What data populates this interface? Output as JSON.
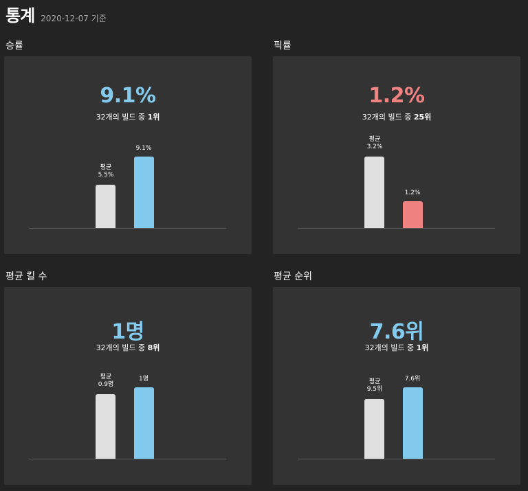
{
  "header": {
    "title": "통계",
    "date": "2020-12-07 기준"
  },
  "colors": {
    "blue": "#82cbef",
    "red": "#f08282",
    "avg": "#e0e0e0"
  },
  "cards": [
    {
      "title": "승률",
      "value": "9.1%",
      "color": "#82cbef",
      "rank_prefix": "32개의 빌드 중 ",
      "rank": "1위",
      "avg_caption": "평균",
      "avg_label": "5.5%",
      "avg_value": 5.5,
      "mine_label": "9.1%",
      "mine_value": 9.1
    },
    {
      "title": "픽률",
      "value": "1.2%",
      "color": "#f08282",
      "rank_prefix": "32개의 빌드 중 ",
      "rank": "25위",
      "avg_caption": "평균",
      "avg_label": "3.2%",
      "avg_value": 3.2,
      "mine_label": "1.2%",
      "mine_value": 1.2
    },
    {
      "title": "평균 킬 수",
      "value": "1명",
      "color": "#82cbef",
      "rank_prefix": "32개의 빌드 중 ",
      "rank": "8위",
      "avg_caption": "평균",
      "avg_label": "0.9명",
      "avg_value": 0.9,
      "mine_label": "1명",
      "mine_value": 1.0
    },
    {
      "title": "평균 순위",
      "value": "7.6위",
      "color": "#82cbef",
      "rank_prefix": "32개의 빌드 중 ",
      "rank": "1위",
      "avg_caption": "평균",
      "avg_label": "9.5위",
      "avg_value": 9.5,
      "mine_label": "7.6위",
      "mine_value": 7.6
    }
  ]
}
